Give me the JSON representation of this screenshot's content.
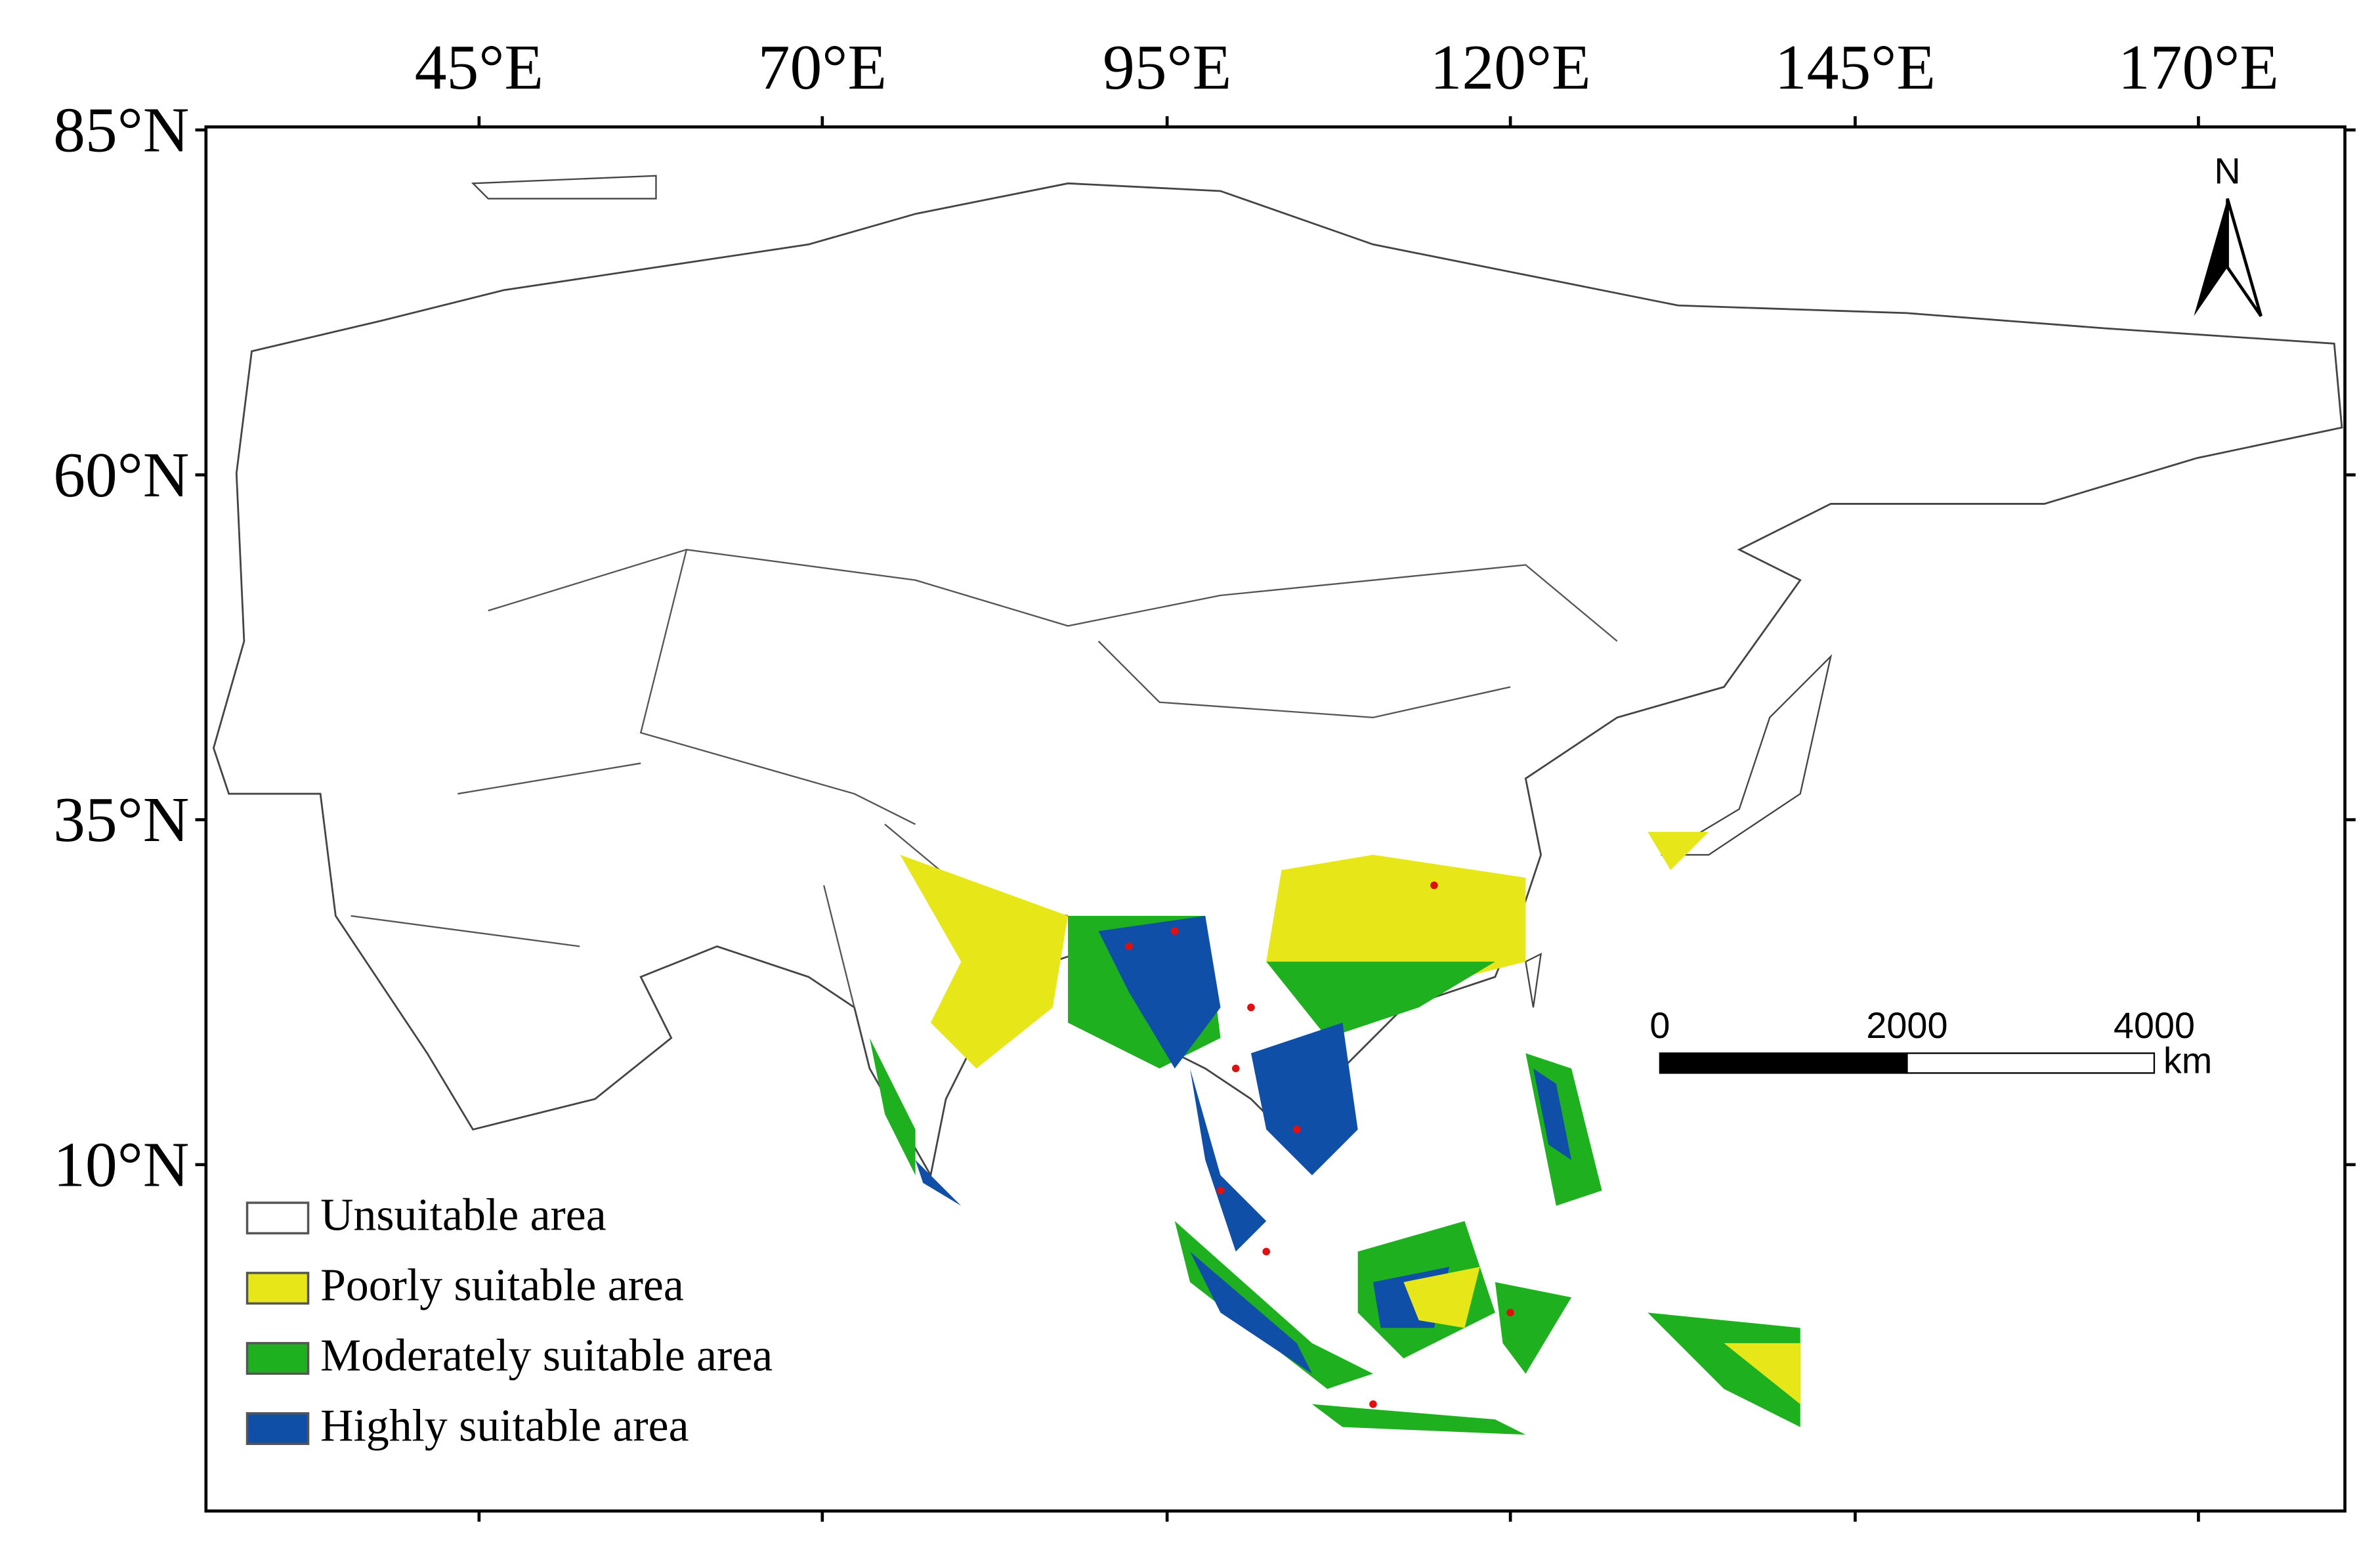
{
  "top_axis_labels": [
    "45°E",
    "70°E",
    "95°E",
    "120°E",
    "145°E",
    "170°E"
  ],
  "left_axis_labels": [
    "85°N",
    "60°N",
    "35°N",
    "10°N"
  ],
  "north_label": "N",
  "scale_bar": {
    "labels": [
      "0",
      "2000",
      "4000"
    ],
    "unit": "km"
  },
  "legend": [
    {
      "label": "Unsuitable area",
      "color": "#ffffff"
    },
    {
      "label": "Poorly suitable area",
      "color": "#e6e619"
    },
    {
      "label": "Moderately suitable area",
      "color": "#1fb01f"
    },
    {
      "label": "Highly suitable area",
      "color": "#0f4fa8"
    }
  ]
}
